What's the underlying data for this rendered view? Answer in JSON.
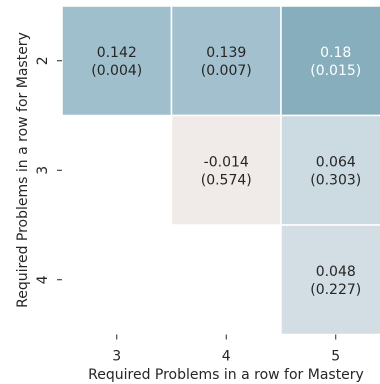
{
  "chart_data": {
    "type": "heatmap",
    "xlabel": "Required Problems in a row for Mastery",
    "ylabel": "Required Problems in a row for Mastery",
    "x_categories": [
      "3",
      "4",
      "5"
    ],
    "y_categories": [
      "2",
      "3",
      "4"
    ],
    "cells": [
      {
        "x": "3",
        "y": "2",
        "value": 0.142,
        "value_label": "0.142",
        "p_label": "(0.004)",
        "color": "#a0bfcc",
        "text_color": "#262626"
      },
      {
        "x": "4",
        "y": "2",
        "value": 0.139,
        "value_label": "0.139",
        "p_label": "(0.007)",
        "color": "#a2c0cd",
        "text_color": "#262626"
      },
      {
        "x": "5",
        "y": "2",
        "value": 0.18,
        "value_label": "0.18",
        "p_label": "(0.015)",
        "color": "#86aebd",
        "text_color": "#ffffff"
      },
      {
        "x": "4",
        "y": "3",
        "value": -0.014,
        "value_label": "-0.014",
        "p_label": "(0.574)",
        "color": "#f0ebe8",
        "text_color": "#262626"
      },
      {
        "x": "5",
        "y": "3",
        "value": 0.064,
        "value_label": "0.064",
        "p_label": "(0.303)",
        "color": "#ccdbe1",
        "text_color": "#262626"
      },
      {
        "x": "5",
        "y": "4",
        "value": 0.048,
        "value_label": "0.048",
        "p_label": "(0.227)",
        "color": "#d2dee3",
        "text_color": "#262626"
      }
    ],
    "colorbar": false,
    "grid": false
  }
}
